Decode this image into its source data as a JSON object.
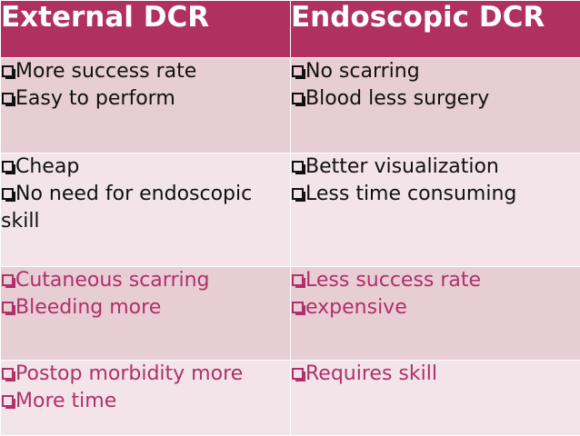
{
  "headers": {
    "col1": "External DCR",
    "col2": "Endoscopic DCR"
  },
  "rows": [
    {
      "col1": [
        "More success rate",
        "Easy to perform"
      ],
      "col2": [
        "No scarring",
        "Blood less surgery"
      ]
    },
    {
      "col1": [
        "Cheap",
        "No need for endoscopic skill"
      ],
      "col2": [
        "Better visualization",
        "Less time consuming"
      ]
    },
    {
      "col1": [
        "Cutaneous scarring",
        "Bleeding more"
      ],
      "col2": [
        "Less success rate",
        "expensive"
      ]
    },
    {
      "col1": [
        "Postop morbidity more",
        "More time"
      ],
      "col2": [
        "Requires skill"
      ]
    }
  ],
  "colors": {
    "header_bg": "#b03060",
    "header_text": "#ffffff",
    "row_band_dark": "#e7cdd4",
    "row_band_light": "#f2e4e8",
    "accent_text": "#b03068",
    "body_text": "#111111"
  },
  "icons": {
    "bullet": "checkbox-square-icon"
  }
}
